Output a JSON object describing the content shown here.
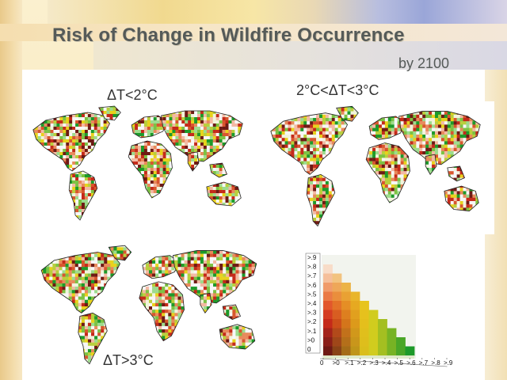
{
  "slide": {
    "title": "Risk of Change in Wildfire Occurrence",
    "subtitle": "by 2100"
  },
  "maps": [
    {
      "label": "ΔT<2°C"
    },
    {
      "label": "2°C<ΔT<3°C"
    },
    {
      "label": "ΔT>3°C"
    }
  ],
  "legend": {
    "y_ticks": [
      ">.9",
      ">.8",
      ">.7",
      ">.6",
      ">.5",
      ">.4",
      ">.3",
      ">.2",
      ">.1",
      ">0",
      "0"
    ],
    "x_ticks": [
      "0",
      ">0",
      ">.1",
      ">.2",
      ">.3",
      ">.4",
      ">.5",
      ">.6",
      ">.7",
      ">.8",
      ">.9"
    ]
  },
  "colors": {
    "title_text": "#555a58",
    "risk_red": "#c42a1a",
    "risk_dark": "#6e1a14",
    "risk_yellow": "#e8d21c",
    "risk_green": "#1d9a2a",
    "risk_light": "#f2f4dc"
  }
}
